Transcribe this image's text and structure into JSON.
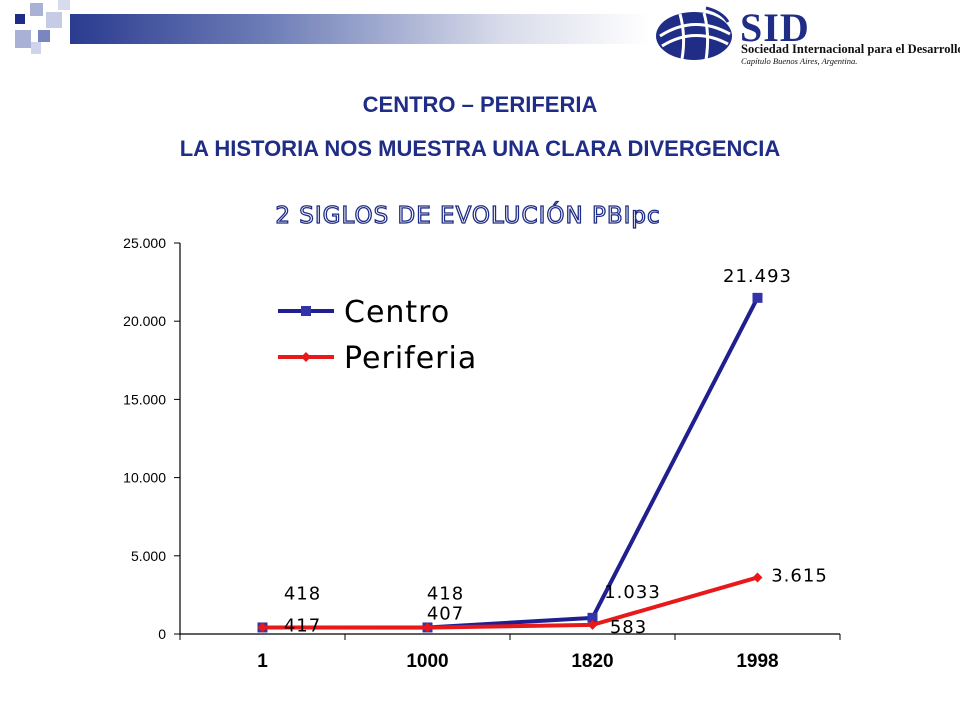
{
  "slide": {
    "heading_line1": "CENTRO – PERIFERIA",
    "heading_line2": "LA HISTORIA NOS MUESTRA UNA CLARA DIVERGENCIA"
  },
  "logo": {
    "name": "SID",
    "organization": "Sociedad Internacional para el Desarrollo",
    "chapter": "Capítulo Buenos Aires, Argentina."
  },
  "colors": {
    "heading": "#1f2d86",
    "centro": "#1f1f8f",
    "periferia": "#e8191b",
    "decor_dark": "#1f2d86",
    "decor_light": "#a9b1d6"
  },
  "chart_data": {
    "type": "line",
    "title": "2 SIGLOS DE EVOLUCIÓN PBIpc",
    "categories": [
      "1",
      "1000",
      "1820",
      "1998"
    ],
    "series": [
      {
        "name": "Centro",
        "values": [
          418,
          418,
          1033,
          21493
        ],
        "labels": [
          "418",
          "418",
          "1.033",
          "21.493"
        ]
      },
      {
        "name": "Periferia",
        "values": [
          417,
          407,
          583,
          3615
        ],
        "labels": [
          "417",
          "407",
          "583",
          "3.615"
        ]
      }
    ],
    "ylim": [
      0,
      25000
    ],
    "yticks": [
      "0",
      "5.000",
      "10.000",
      "15.000",
      "20.000",
      "25.000"
    ],
    "grid": false,
    "legend_position": "top-left"
  }
}
